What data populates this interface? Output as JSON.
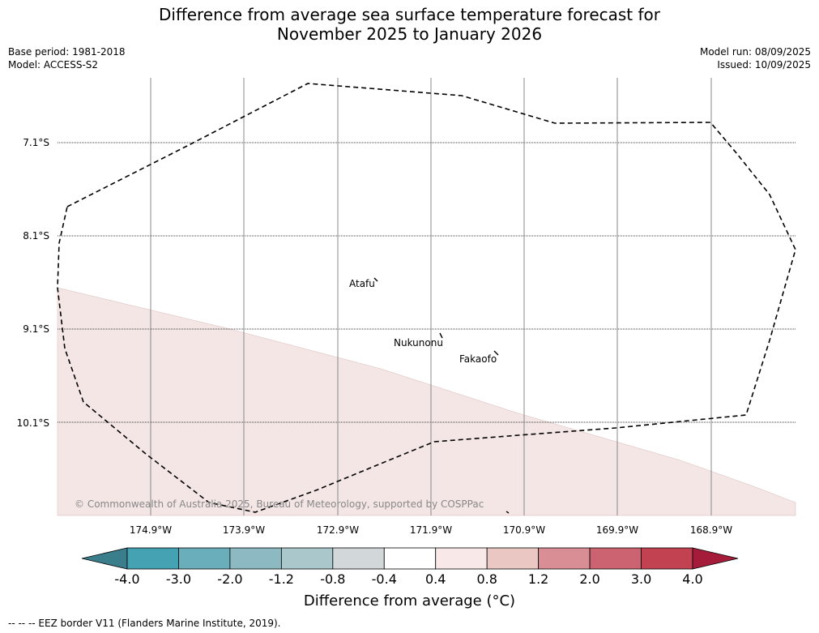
{
  "title_line1": "Difference from average sea surface temperature forecast for",
  "title_line2": "November 2025 to January 2026",
  "meta": {
    "base_period": "Base period: 1981-2018",
    "model": "Model: ACCESS-S2",
    "model_run": "Model run: 08/09/2025",
    "issued": "Issued: 10/09/2025"
  },
  "map": {
    "lat_labels": [
      "7.1°S",
      "8.1°S",
      "9.1°S",
      "10.1°S"
    ],
    "lon_labels": [
      "174.9°W",
      "173.9°W",
      "172.9°W",
      "171.9°W",
      "170.9°W",
      "169.9°W",
      "168.9°W"
    ],
    "places": [
      "Atafu",
      "Nukunonu",
      "Fakaofo"
    ],
    "copyright": "© Commonwealth of Australia 2025, Bureau of Meteorology, supported by COSPPac",
    "warm_fill_color": "#f5e6e6"
  },
  "colorbar": {
    "ticks": [
      "-4.0",
      "-3.0",
      "-2.0",
      "-1.2",
      "-0.8",
      "-0.4",
      "0.4",
      "0.8",
      "1.2",
      "2.0",
      "3.0",
      "4.0"
    ],
    "colors": [
      "#3a7e8b",
      "#44a2b2",
      "#6aaebb",
      "#8cb9c2",
      "#aac8cc",
      "#d2d8d9",
      "#ffffff",
      "#f8e8e7",
      "#eac7c3",
      "#d98e95",
      "#cc6370",
      "#c24252",
      "#a41c3a"
    ],
    "label": "Difference from average (°C)"
  },
  "footer": "--  --  -- EEZ border V11 (Flanders Marine Institute, 2019)."
}
